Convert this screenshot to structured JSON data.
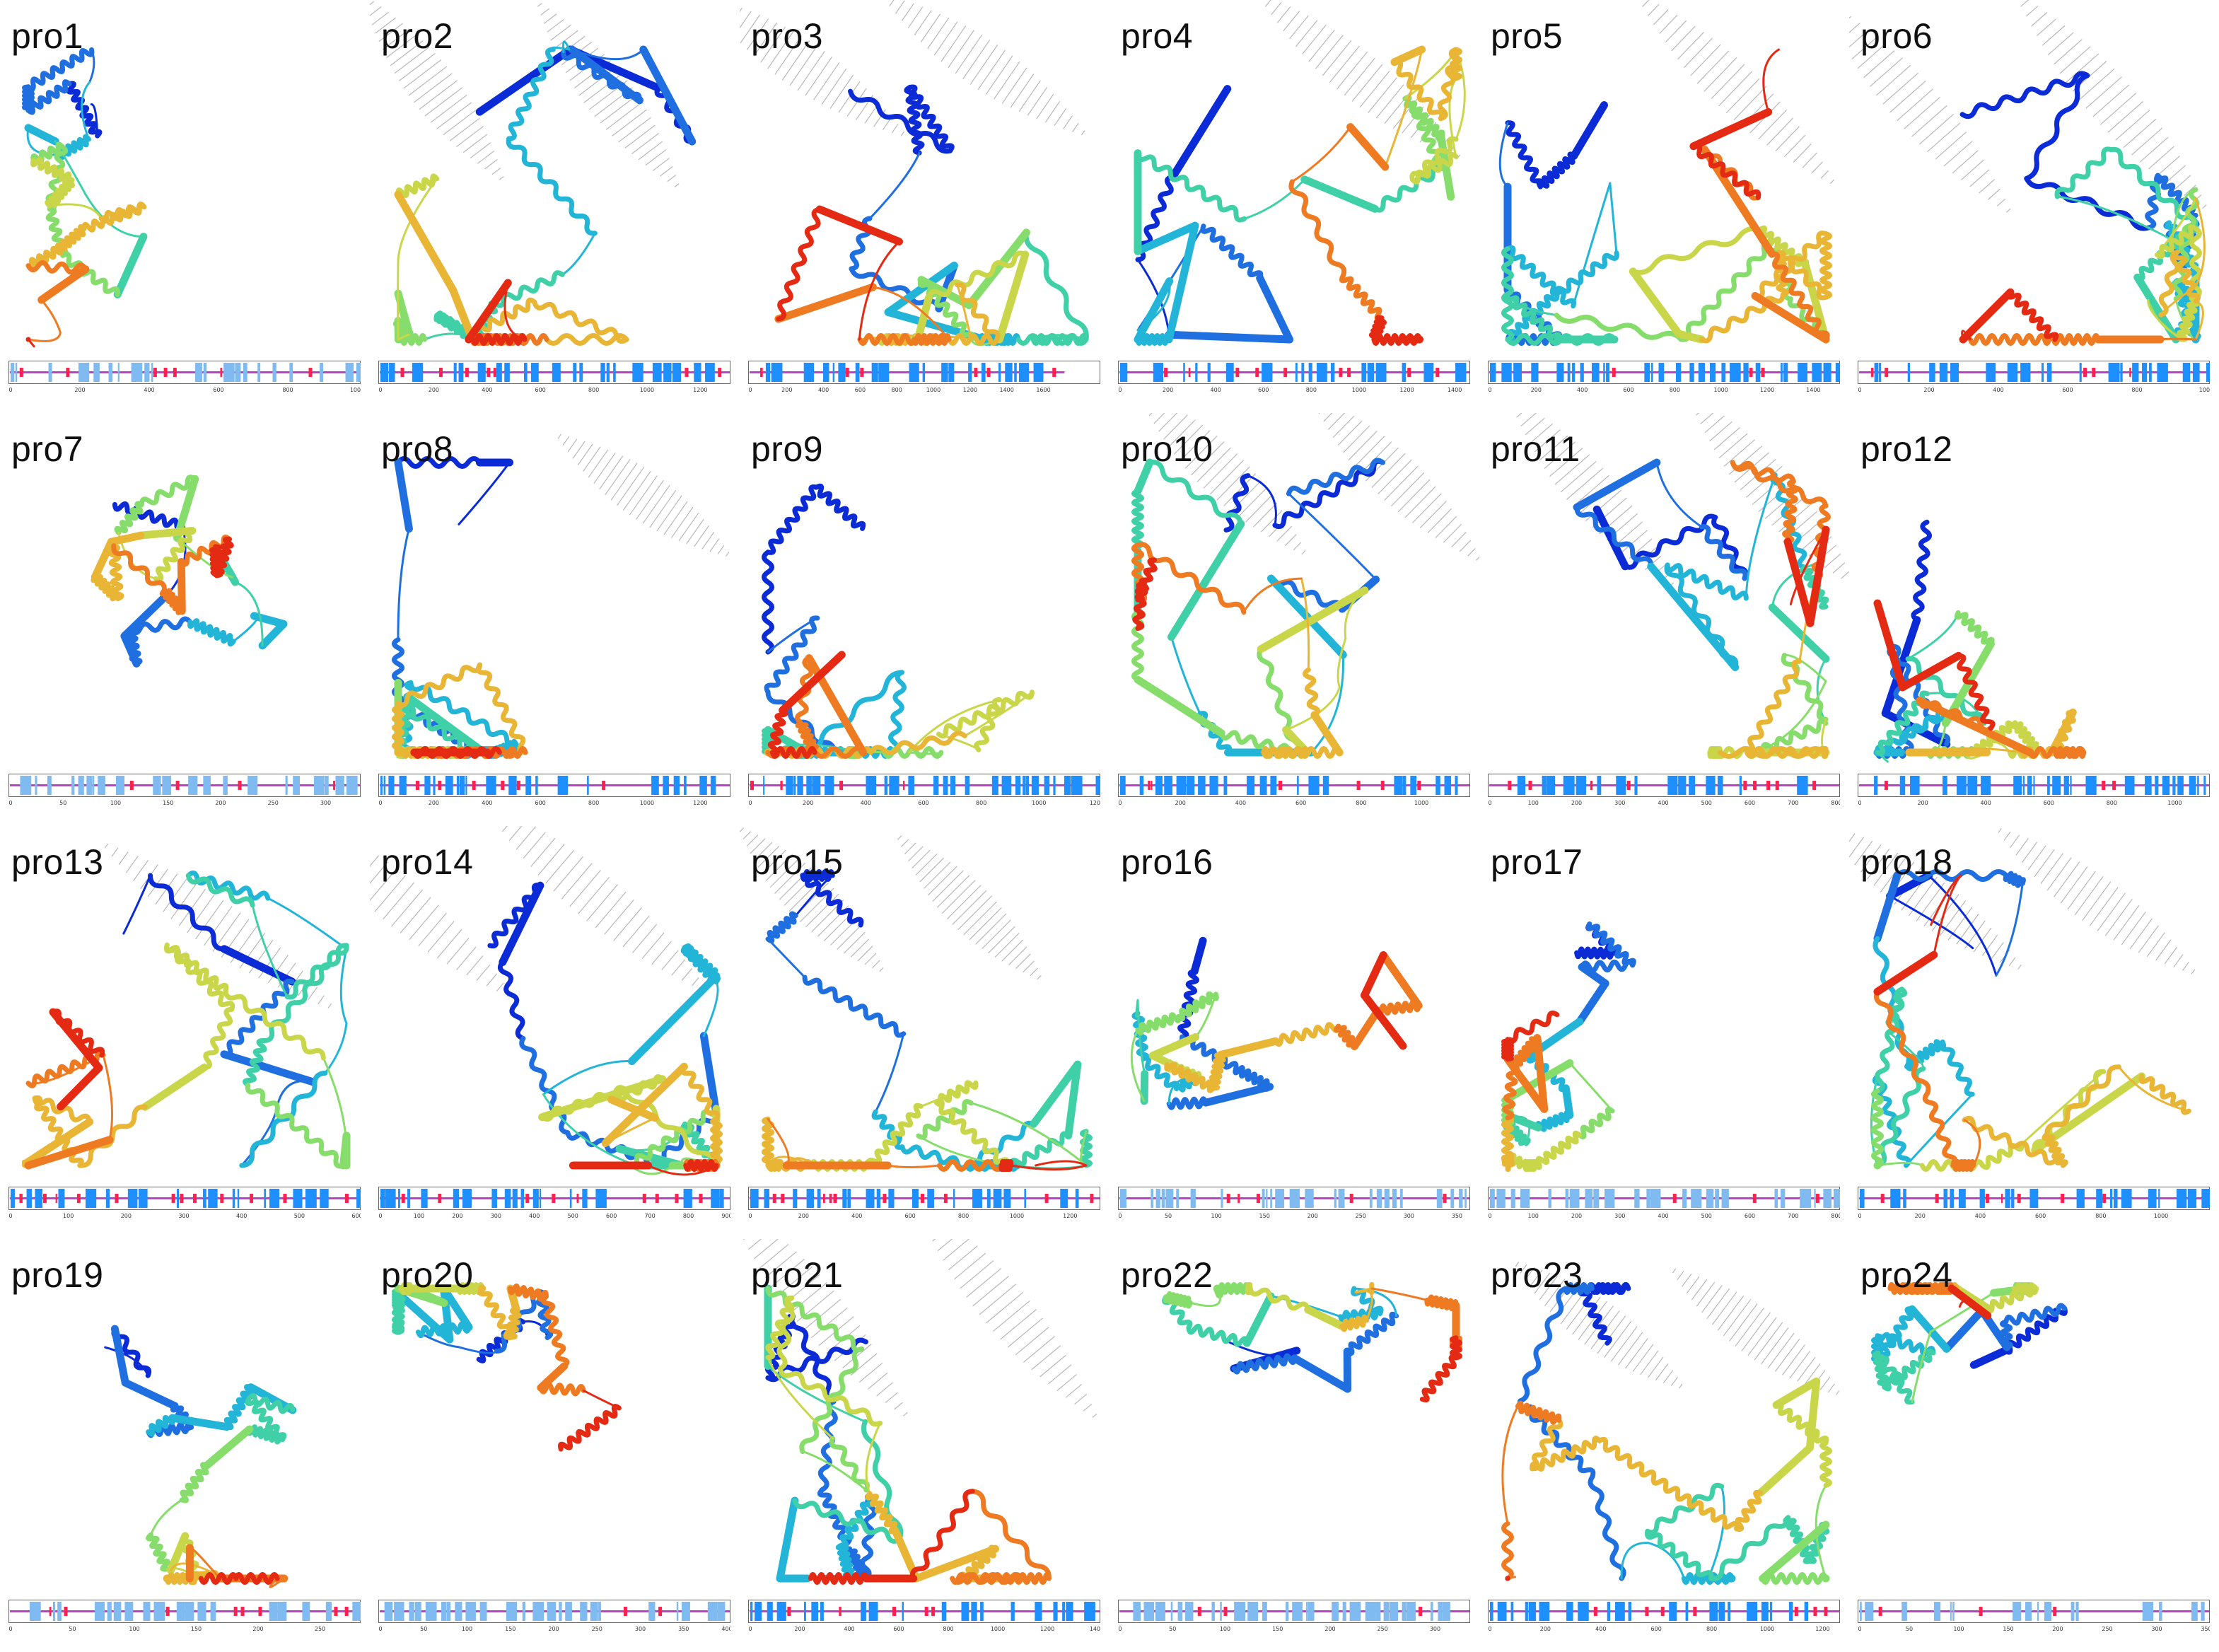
{
  "figure": {
    "colors": {
      "rainbow": [
        "#0a2bd6",
        "#1f6fe0",
        "#22b5d8",
        "#3fd0a8",
        "#86dd6b",
        "#c9d64a",
        "#e8b535",
        "#ee7a22",
        "#e52a14"
      ],
      "track_blue": "#1e8fff",
      "track_light": "#7fbaf0",
      "track_red": "#ff2050",
      "track_magenta": "#c03ccc",
      "membrane": "#a0a0a0"
    },
    "panels": [
      {
        "label": "pro1",
        "icon": "protein-structure",
        "fold": "globular",
        "membrane": false,
        "scale_range": [
          0,
          1000
        ],
        "track_extent": 1.0
      },
      {
        "label": "pro2",
        "icon": "protein-structure",
        "fold": "membrane",
        "membrane": true,
        "scale_range": [
          0,
          1300
        ],
        "track_extent": 1.0
      },
      {
        "label": "pro3",
        "icon": "protein-structure",
        "fold": "membrane",
        "membrane": true,
        "scale_range": [
          0,
          1700
        ],
        "track_extent": 0.9
      },
      {
        "label": "pro4",
        "icon": "protein-structure",
        "fold": "membrane",
        "membrane": true,
        "scale_range": [
          0,
          1450
        ],
        "track_extent": 1.0
      },
      {
        "label": "pro5",
        "icon": "protein-structure",
        "fold": "membrane",
        "membrane": true,
        "scale_range": [
          0,
          1500
        ],
        "track_extent": 1.0
      },
      {
        "label": "pro6",
        "icon": "protein-structure",
        "fold": "membrane",
        "membrane": true,
        "scale_range": [
          0,
          1000
        ],
        "track_extent": 1.0
      },
      {
        "label": "pro7",
        "icon": "protein-structure",
        "fold": "globular",
        "membrane": false,
        "scale_range": [
          0,
          330
        ],
        "track_extent": 1.0
      },
      {
        "label": "pro8",
        "icon": "protein-structure",
        "fold": "membrane",
        "membrane": true,
        "scale_range": [
          0,
          1300
        ],
        "track_extent": 1.0
      },
      {
        "label": "pro9",
        "icon": "protein-structure",
        "fold": "membrane",
        "membrane": false,
        "scale_range": [
          0,
          1200
        ],
        "track_extent": 1.0
      },
      {
        "label": "pro10",
        "icon": "protein-structure",
        "fold": "membrane",
        "membrane": true,
        "scale_range": [
          0,
          1150
        ],
        "track_extent": 1.0
      },
      {
        "label": "pro11",
        "icon": "protein-structure",
        "fold": "membrane",
        "membrane": true,
        "scale_range": [
          0,
          800
        ],
        "track_extent": 1.0
      },
      {
        "label": "pro12",
        "icon": "protein-structure",
        "fold": "helical",
        "membrane": false,
        "scale_range": [
          0,
          1100
        ],
        "track_extent": 1.0
      },
      {
        "label": "pro13",
        "icon": "protein-structure",
        "fold": "membrane",
        "membrane": true,
        "scale_range": [
          0,
          600
        ],
        "track_extent": 1.0
      },
      {
        "label": "pro14",
        "icon": "protein-structure",
        "fold": "membrane",
        "membrane": true,
        "scale_range": [
          0,
          900
        ],
        "track_extent": 1.0
      },
      {
        "label": "pro15",
        "icon": "protein-structure",
        "fold": "membrane",
        "membrane": true,
        "scale_range": [
          0,
          1300
        ],
        "track_extent": 1.0
      },
      {
        "label": "pro16",
        "icon": "protein-structure",
        "fold": "globular",
        "membrane": false,
        "scale_range": [
          0,
          360
        ],
        "track_extent": 1.0
      },
      {
        "label": "pro17",
        "icon": "protein-structure",
        "fold": "globular",
        "membrane": false,
        "scale_range": [
          0,
          800
        ],
        "track_extent": 1.0
      },
      {
        "label": "pro18",
        "icon": "protein-structure",
        "fold": "membrane",
        "membrane": true,
        "scale_range": [
          0,
          1150
        ],
        "track_extent": 1.0
      },
      {
        "label": "pro19",
        "icon": "protein-structure",
        "fold": "globular",
        "membrane": false,
        "scale_range": [
          0,
          280
        ],
        "track_extent": 1.0
      },
      {
        "label": "pro20",
        "icon": "protein-structure",
        "fold": "globular",
        "membrane": false,
        "scale_range": [
          0,
          400
        ],
        "track_extent": 1.0
      },
      {
        "label": "pro21",
        "icon": "protein-structure",
        "fold": "membrane",
        "membrane": true,
        "scale_range": [
          0,
          1400
        ],
        "track_extent": 1.0
      },
      {
        "label": "pro22",
        "icon": "protein-structure",
        "fold": "globular",
        "membrane": false,
        "scale_range": [
          0,
          330
        ],
        "track_extent": 1.0
      },
      {
        "label": "pro23",
        "icon": "protein-structure",
        "fold": "membrane",
        "membrane": true,
        "scale_range": [
          0,
          1250
        ],
        "track_extent": 1.0
      },
      {
        "label": "pro24",
        "icon": "protein-structure",
        "fold": "globular",
        "membrane": false,
        "scale_range": [
          0,
          350
        ],
        "track_extent": 1.0
      }
    ]
  }
}
